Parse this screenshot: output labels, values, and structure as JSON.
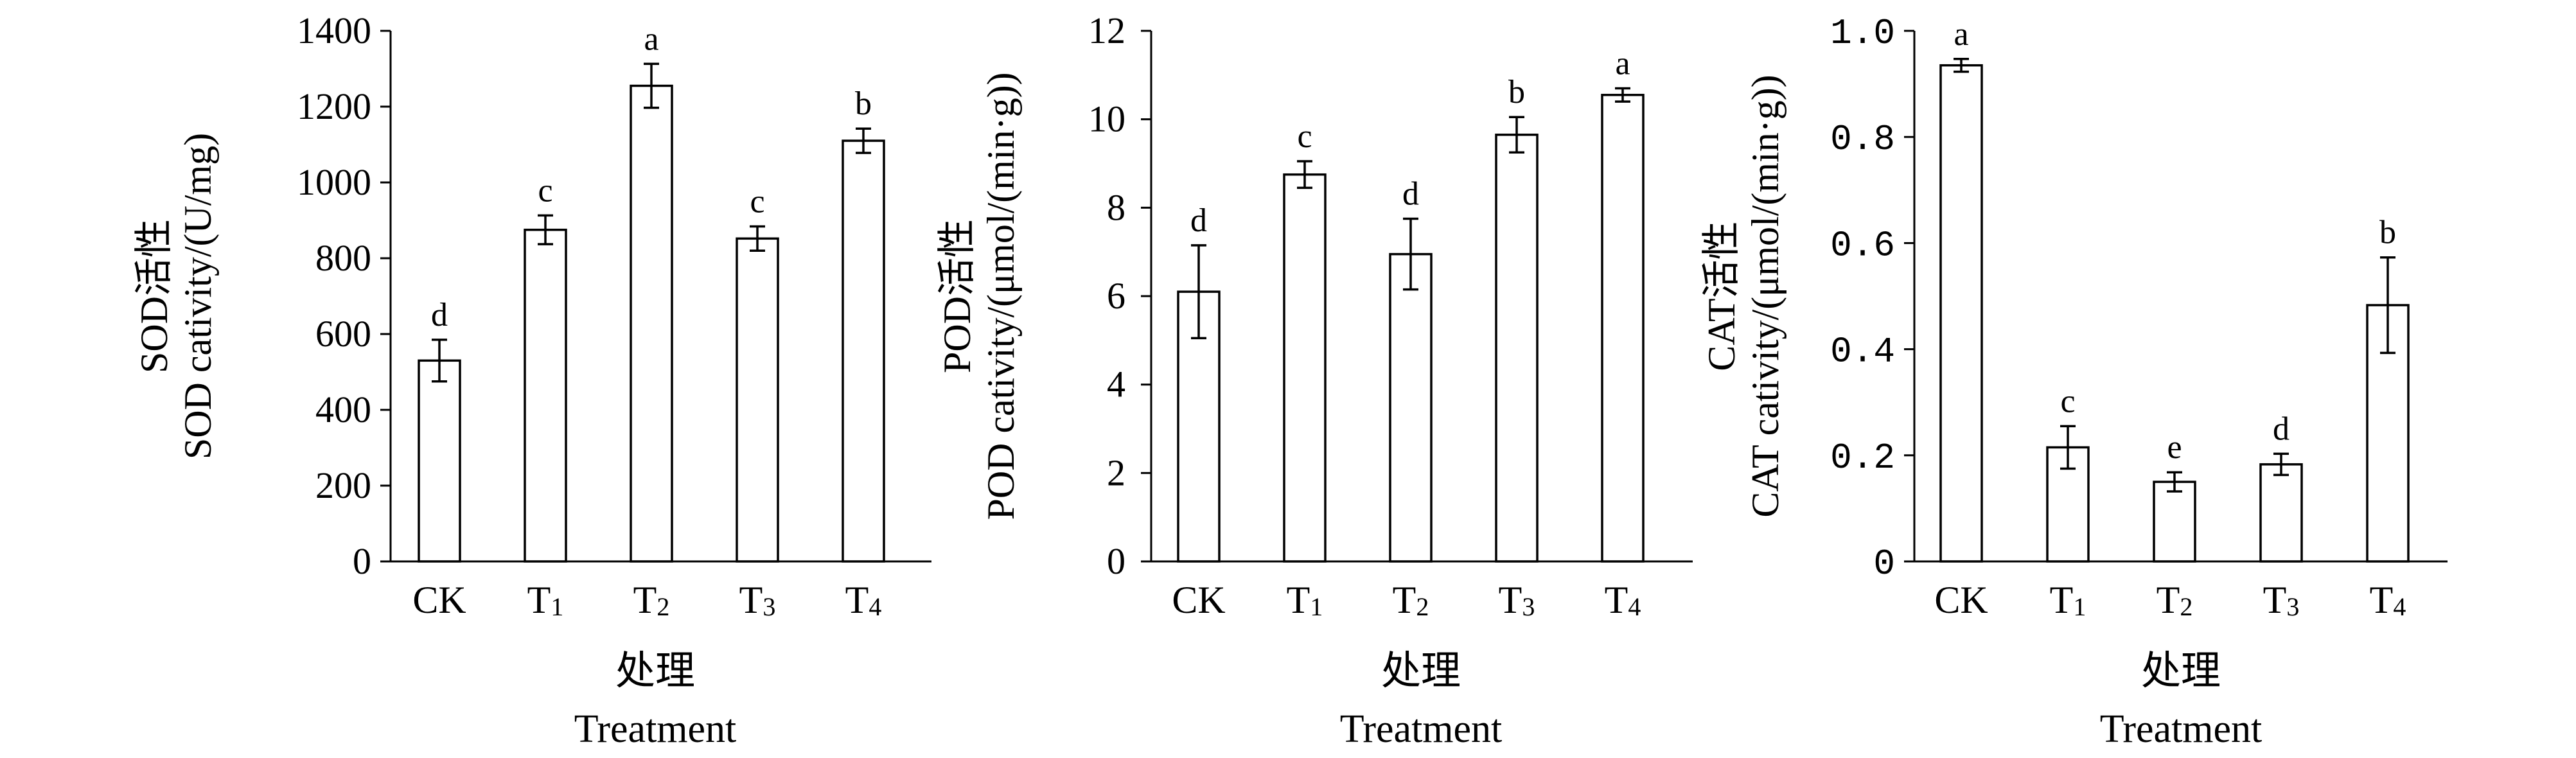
{
  "chart_data": [
    {
      "type": "bar",
      "title": "",
      "categories": [
        "CK",
        "T1",
        "T2",
        "T3",
        "T4"
      ],
      "category_display": [
        {
          "main": "CK",
          "sub": ""
        },
        {
          "main": "T",
          "sub": "1"
        },
        {
          "main": "T",
          "sub": "2"
        },
        {
          "main": "T",
          "sub": "3"
        },
        {
          "main": "T",
          "sub": "4"
        }
      ],
      "values": [
        530,
        875,
        1255,
        852,
        1110
      ],
      "errors": [
        55,
        38,
        58,
        32,
        32
      ],
      "significance": [
        "d",
        "c",
        "a",
        "c",
        "b"
      ],
      "ylabel_cn": "SOD活性",
      "ylabel_en": "SOD cativity/(U/mg)",
      "xlabel_cn": "处理",
      "xlabel_en": "Treatment",
      "ylim": [
        0,
        1400
      ],
      "yticks": [
        0,
        200,
        400,
        600,
        800,
        1000,
        1200,
        1400
      ],
      "ytick_labels": [
        "0",
        "200",
        "400",
        "600",
        "800",
        "1000",
        "1200",
        "1400"
      ],
      "grid": false
    },
    {
      "type": "bar",
      "title": "",
      "categories": [
        "CK",
        "T1",
        "T2",
        "T3",
        "T4"
      ],
      "category_display": [
        {
          "main": "CK",
          "sub": ""
        },
        {
          "main": "T",
          "sub": "1"
        },
        {
          "main": "T",
          "sub": "2"
        },
        {
          "main": "T",
          "sub": "3"
        },
        {
          "main": "T",
          "sub": "4"
        }
      ],
      "values": [
        6.1,
        8.75,
        6.95,
        9.65,
        10.55
      ],
      "errors": [
        1.05,
        0.3,
        0.8,
        0.4,
        0.15
      ],
      "significance": [
        "d",
        "c",
        "d",
        "b",
        "a"
      ],
      "ylabel_cn": "POD活性",
      "ylabel_en": "POD cativity/(μmol/(min·g))",
      "xlabel_cn": "处理",
      "xlabel_en": "Treatment",
      "ylim": [
        0,
        12
      ],
      "yticks": [
        0,
        2,
        4,
        6,
        8,
        10,
        12
      ],
      "ytick_labels": [
        "0",
        "2",
        "4",
        "6",
        "8",
        "10",
        "12"
      ],
      "grid": false
    },
    {
      "type": "bar",
      "title": "",
      "categories": [
        "CK",
        "T1",
        "T2",
        "T3",
        "T4"
      ],
      "category_display": [
        {
          "main": "CK",
          "sub": ""
        },
        {
          "main": "T",
          "sub": "1"
        },
        {
          "main": "T",
          "sub": "2"
        },
        {
          "main": "T",
          "sub": "3"
        },
        {
          "main": "T",
          "sub": "4"
        }
      ],
      "values": [
        0.935,
        0.215,
        0.15,
        0.183,
        0.483
      ],
      "errors": [
        0.012,
        0.04,
        0.018,
        0.02,
        0.09
      ],
      "significance": [
        "a",
        "c",
        "e",
        "d",
        "b"
      ],
      "ylabel_cn": "CAT活性",
      "ylabel_en": "CAT cativity/(μmol/(min·g))",
      "xlabel_cn": "处理",
      "xlabel_en": "Treatment",
      "ylim": [
        0,
        1.0
      ],
      "yticks": [
        0,
        0.2,
        0.4,
        0.6,
        0.8,
        1.0
      ],
      "ytick_labels": [
        "0",
        "0.2",
        "0.4",
        "0.6",
        "0.8",
        "1.0"
      ],
      "grid": false
    }
  ]
}
